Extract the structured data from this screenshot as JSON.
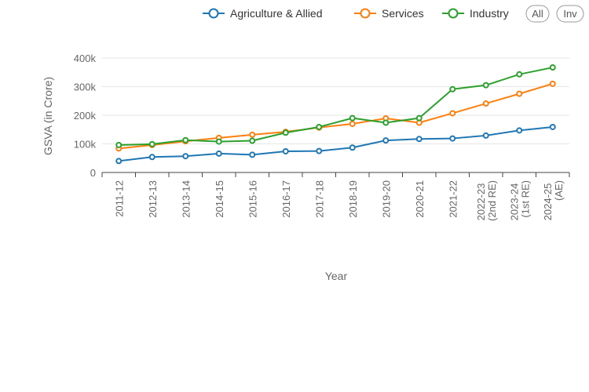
{
  "chart_data": {
    "type": "line",
    "xlabel": "Year",
    "ylabel": "GSVA (in Crore)",
    "ylim": [
      0,
      400000
    ],
    "yticks": [
      0,
      100000,
      200000,
      300000,
      400000
    ],
    "ytick_labels": [
      "0",
      "100k",
      "200k",
      "300k",
      "400k"
    ],
    "grid": true,
    "legend_position": "top-right",
    "categories": [
      "2011-12",
      "2012-13",
      "2013-14",
      "2014-15",
      "2015-16",
      "2016-17",
      "2017-18",
      "2018-19",
      "2019-20",
      "2020-21",
      "2021-22",
      "2022-23 (2nd RE)",
      "2023-24 (1st RE)",
      "2024-25 (AE)"
    ],
    "series": [
      {
        "name": "Agriculture & Allied",
        "color": "#1f77b4",
        "values": [
          40000,
          54000,
          57000,
          66000,
          62000,
          74000,
          75000,
          87000,
          112000,
          117000,
          119000,
          129000,
          147000,
          159000
        ]
      },
      {
        "name": "Services",
        "color": "#ff7f0e",
        "values": [
          84000,
          96000,
          109000,
          121000,
          132000,
          142000,
          157000,
          170000,
          189000,
          174000,
          207000,
          241000,
          275000,
          310000
        ]
      },
      {
        "name": "Industry",
        "color": "#2ca02c",
        "values": [
          96000,
          99000,
          113000,
          108000,
          111000,
          139000,
          159000,
          190000,
          174000,
          190000,
          291000,
          305000,
          343000,
          367000
        ]
      }
    ]
  },
  "controls": {
    "all_label": "All",
    "inv_label": "Inv"
  }
}
